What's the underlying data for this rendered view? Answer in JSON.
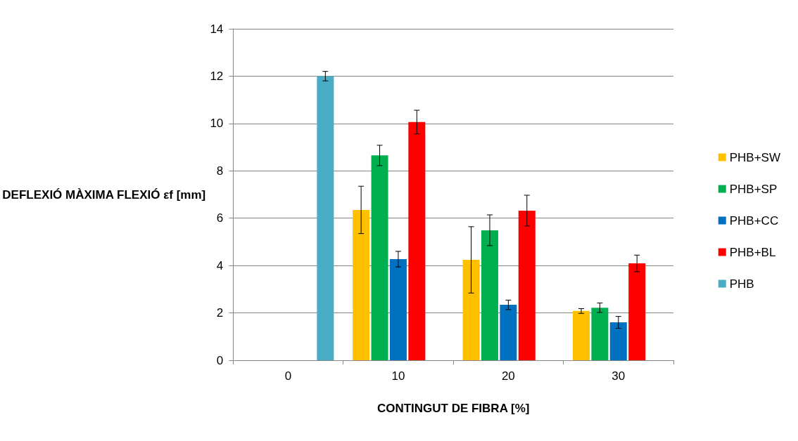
{
  "chart_data": {
    "type": "bar",
    "xlabel": "CONTINGUT DE FIBRA [%]",
    "ylabel": "DEFLEXIÓ MÀXIMA FLEXIÓ εf [mm]",
    "categories": [
      "0",
      "10",
      "20",
      "30"
    ],
    "series": [
      {
        "name": "PHB+SW",
        "color": "#ffc000",
        "values": [
          null,
          6.35,
          4.24,
          2.08
        ],
        "errors": [
          null,
          1.0,
          1.4,
          0.1
        ]
      },
      {
        "name": "PHB+SP",
        "color": "#00b050",
        "values": [
          null,
          8.65,
          5.49,
          2.22
        ],
        "errors": [
          null,
          0.43,
          0.65,
          0.2
        ]
      },
      {
        "name": "PHB+CC",
        "color": "#0070c0",
        "values": [
          null,
          4.27,
          2.34,
          1.6
        ],
        "errors": [
          null,
          0.33,
          0.2,
          0.25
        ]
      },
      {
        "name": "PHB+BL",
        "color": "#ff0000",
        "values": [
          null,
          10.06,
          6.32,
          4.09
        ],
        "errors": [
          null,
          0.5,
          0.65,
          0.35
        ]
      },
      {
        "name": "PHB",
        "color": "#4bacc6",
        "values": [
          12.0,
          null,
          null,
          null
        ],
        "errors": [
          0.2,
          null,
          null,
          null
        ]
      }
    ],
    "ylim": [
      0,
      14
    ],
    "yticks": [
      0,
      2,
      4,
      6,
      8,
      10,
      12,
      14
    ],
    "grid": "y",
    "legend": "right"
  }
}
